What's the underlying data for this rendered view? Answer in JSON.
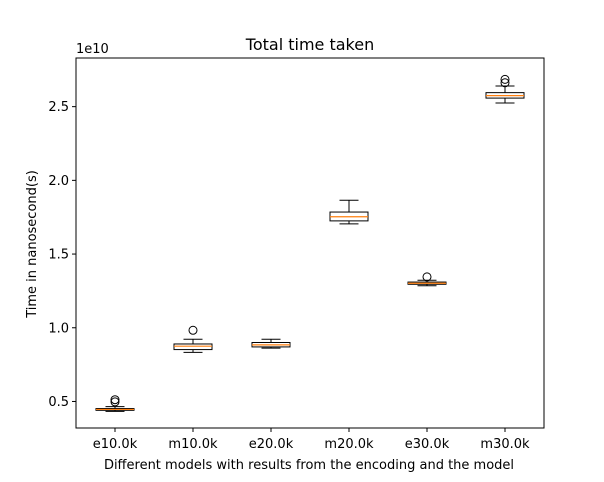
{
  "chart_data": {
    "type": "box",
    "title": "Total time taken",
    "xlabel": "Different models with results from the encoding and the model",
    "ylabel": "Time in nanosecond(s)",
    "y_offset_label": "1e10",
    "y_scale_multiplier": 10000000000,
    "ylim": [
      0.32,
      2.83
    ],
    "yticks": [
      0.5,
      1.0,
      1.5,
      2.0,
      2.5
    ],
    "ytick_labels": [
      "0.5",
      "1.0",
      "1.5",
      "2.0",
      "2.5"
    ],
    "grid": false,
    "categories": [
      "e10.0k",
      "m10.0k",
      "e20.0k",
      "m20.0k",
      "e30.0k",
      "m30.0k"
    ],
    "boxes": [
      {
        "whisker_low": 4.33,
        "q1": 4.4,
        "median": 4.46,
        "q3": 4.52,
        "whisker_high": 4.65,
        "outliers": [
          4.97,
          5.12
        ]
      },
      {
        "whisker_low": 8.33,
        "q1": 8.52,
        "median": 8.75,
        "q3": 8.9,
        "whisker_high": 9.22,
        "outliers": [
          9.83
        ]
      },
      {
        "whisker_low": 8.62,
        "q1": 8.7,
        "median": 8.84,
        "q3": 9.0,
        "whisker_high": 9.22,
        "outliers": []
      },
      {
        "whisker_low": 17.05,
        "q1": 17.25,
        "median": 17.53,
        "q3": 17.85,
        "whisker_high": 18.65,
        "outliers": []
      },
      {
        "whisker_low": 12.85,
        "q1": 12.95,
        "median": 13.02,
        "q3": 13.1,
        "whisker_high": 13.22,
        "outliers": [
          13.45
        ]
      },
      {
        "whisker_low": 25.25,
        "q1": 25.58,
        "median": 25.75,
        "q3": 25.95,
        "whisker_high": 26.4,
        "outliers": [
          26.62,
          26.85
        ]
      }
    ],
    "colors": {
      "box_edge": "#000000",
      "median": "#ff7f0e",
      "fill": "#ffffff"
    }
  }
}
